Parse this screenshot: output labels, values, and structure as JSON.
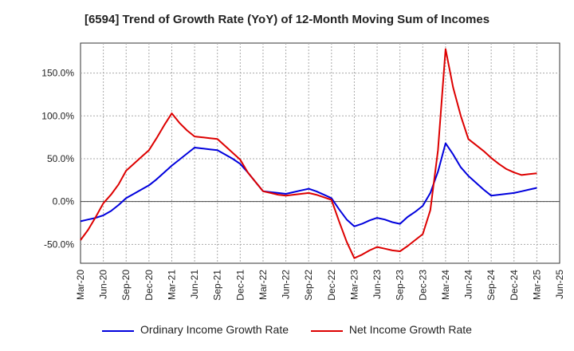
{
  "chart_data": {
    "type": "line",
    "title": "[6594]  Trend of Growth Rate (YoY) of 12-Month Moving Sum of Incomes",
    "y_tick_labels": [
      "-50.0%",
      "0.0%",
      "50.0%",
      "100.0%",
      "150.0%"
    ],
    "y_ticks": [
      -50,
      0,
      50,
      100,
      150
    ],
    "ylim": [
      -72,
      185
    ],
    "x_tick_labels": [
      "Mar-20",
      "Jun-20",
      "Sep-20",
      "Dec-20",
      "Mar-21",
      "Jun-21",
      "Sep-21",
      "Dec-21",
      "Mar-22",
      "Jun-22",
      "Sep-22",
      "Dec-22",
      "Mar-23",
      "Jun-23",
      "Sep-23",
      "Dec-23",
      "Mar-24",
      "Jun-24",
      "Sep-24",
      "Dec-24",
      "Mar-25",
      "Jun-25"
    ],
    "x": [
      "2020-03",
      "2020-04",
      "2020-05",
      "2020-06",
      "2020-07",
      "2020-08",
      "2020-09",
      "2020-10",
      "2020-11",
      "2020-12",
      "2021-01",
      "2021-02",
      "2021-03",
      "2021-04",
      "2021-05",
      "2021-06",
      "2021-07",
      "2021-08",
      "2021-09",
      "2021-10",
      "2021-11",
      "2021-12",
      "2022-01",
      "2022-02",
      "2022-03",
      "2022-04",
      "2022-05",
      "2022-06",
      "2022-07",
      "2022-08",
      "2022-09",
      "2022-10",
      "2022-11",
      "2022-12",
      "2023-01",
      "2023-02",
      "2023-03",
      "2023-04",
      "2023-05",
      "2023-06",
      "2023-07",
      "2023-08",
      "2023-09",
      "2023-10",
      "2023-11",
      "2023-12",
      "2024-01",
      "2024-02",
      "2024-03",
      "2024-04",
      "2024-05",
      "2024-06",
      "2024-07",
      "2024-08",
      "2024-09",
      "2024-10",
      "2024-11",
      "2024-12",
      "2025-01",
      "2025-02",
      "2025-03"
    ],
    "series": [
      {
        "name": "Ordinary Income Growth Rate",
        "color": "#0000dd",
        "values": [
          -23,
          -21,
          -19,
          -16,
          -11,
          -4,
          4,
          9,
          14,
          19,
          26,
          34,
          42,
          49,
          56,
          63,
          62,
          61,
          60,
          55,
          50,
          44,
          34,
          23,
          12,
          11,
          10,
          9,
          11,
          13,
          15,
          12,
          8,
          4,
          -9,
          -21,
          -29,
          -26,
          -22,
          -19,
          -21,
          -24,
          -26,
          -18,
          -12,
          -5,
          10,
          35,
          68,
          55,
          40,
          30,
          22,
          14,
          7,
          8,
          9,
          10,
          12,
          14,
          16
        ]
      },
      {
        "name": "Net Income Growth Rate",
        "color": "#dd0000",
        "values": [
          -45,
          -33,
          -18,
          -2,
          8,
          20,
          36,
          44,
          52,
          60,
          74,
          89,
          103,
          92,
          83,
          76,
          75,
          74,
          73,
          65,
          57,
          49,
          34,
          23,
          12,
          10,
          8,
          7,
          8,
          9,
          10,
          8,
          5,
          2,
          -23,
          -47,
          -66,
          -62,
          -57,
          -53,
          -55,
          -57,
          -58,
          -52,
          -45,
          -38,
          -10,
          60,
          178,
          133,
          100,
          73,
          66,
          59,
          51,
          44,
          38,
          34,
          31,
          32,
          33
        ]
      }
    ],
    "grid": true,
    "legend_position": "bottom"
  }
}
